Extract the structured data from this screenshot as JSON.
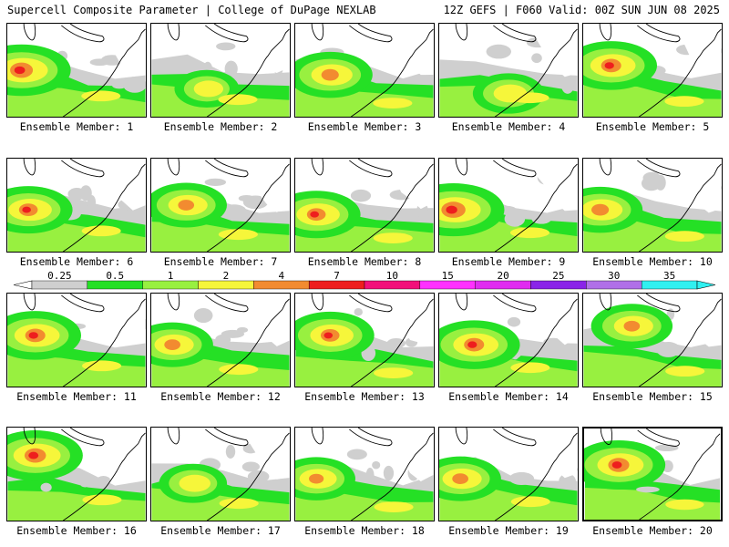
{
  "header": {
    "title_left": "Supercell Composite Parameter | College of DuPage NEXLAB",
    "title_right": "12Z GEFS | F060 Valid: 00Z SUN JUN 08 2025"
  },
  "colors": {
    "land": "#ffffff",
    "coast": "#000000",
    "levels": [
      "#cfcfcf",
      "#25e025",
      "#98f040",
      "#f6f63a",
      "#f28b30",
      "#ee1e1e",
      "#f2107a",
      "#ff30ff",
      "#e02cf0",
      "#8a24e8",
      "#b070e8",
      "#30f0f0"
    ]
  },
  "colorbar": {
    "tick_labels": [
      "0.25",
      "0.5",
      "1",
      "2",
      "4",
      "7",
      "10",
      "15",
      "20",
      "25",
      "30",
      "35"
    ]
  },
  "members": [
    {
      "label": "Ensemble Member: 1",
      "intensity": 0.85,
      "hot_x": 0.1,
      "hot_y": 0.5,
      "selected": false
    },
    {
      "label": "Ensemble Member: 2",
      "intensity": 0.35,
      "hot_x": 0.4,
      "hot_y": 0.7,
      "selected": false
    },
    {
      "label": "Ensemble Member: 3",
      "intensity": 0.65,
      "hot_x": 0.25,
      "hot_y": 0.55,
      "selected": false
    },
    {
      "label": "Ensemble Member: 4",
      "intensity": 0.45,
      "hot_x": 0.5,
      "hot_y": 0.75,
      "selected": false
    },
    {
      "label": "Ensemble Member: 5",
      "intensity": 0.75,
      "hot_x": 0.2,
      "hot_y": 0.45,
      "selected": false
    },
    {
      "label": "Ensemble Member: 6",
      "intensity": 0.7,
      "hot_x": 0.15,
      "hot_y": 0.55,
      "selected": false
    },
    {
      "label": "Ensemble Member: 7",
      "intensity": 0.6,
      "hot_x": 0.25,
      "hot_y": 0.5,
      "selected": false
    },
    {
      "label": "Ensemble Member: 8",
      "intensity": 0.7,
      "hot_x": 0.15,
      "hot_y": 0.6,
      "selected": false
    },
    {
      "label": "Ensemble Member: 9",
      "intensity": 0.9,
      "hot_x": 0.1,
      "hot_y": 0.55,
      "selected": false
    },
    {
      "label": "Ensemble Member: 10",
      "intensity": 0.65,
      "hot_x": 0.12,
      "hot_y": 0.55,
      "selected": false
    },
    {
      "label": "Ensemble Member: 11",
      "intensity": 0.75,
      "hot_x": 0.2,
      "hot_y": 0.45,
      "selected": false
    },
    {
      "label": "Ensemble Member: 12",
      "intensity": 0.6,
      "hot_x": 0.15,
      "hot_y": 0.55,
      "selected": false
    },
    {
      "label": "Ensemble Member: 13",
      "intensity": 0.7,
      "hot_x": 0.25,
      "hot_y": 0.45,
      "selected": false
    },
    {
      "label": "Ensemble Member: 14",
      "intensity": 0.75,
      "hot_x": 0.25,
      "hot_y": 0.55,
      "selected": false
    },
    {
      "label": "Ensemble Member: 15",
      "intensity": 0.6,
      "hot_x": 0.35,
      "hot_y": 0.35,
      "selected": false
    },
    {
      "label": "Ensemble Member: 16",
      "intensity": 0.8,
      "hot_x": 0.2,
      "hot_y": 0.3,
      "selected": false
    },
    {
      "label": "Ensemble Member: 17",
      "intensity": 0.4,
      "hot_x": 0.3,
      "hot_y": 0.6,
      "selected": false
    },
    {
      "label": "Ensemble Member: 18",
      "intensity": 0.55,
      "hot_x": 0.15,
      "hot_y": 0.55,
      "selected": false
    },
    {
      "label": "Ensemble Member: 19",
      "intensity": 0.6,
      "hot_x": 0.15,
      "hot_y": 0.55,
      "selected": false
    },
    {
      "label": "Ensemble Member: 20",
      "intensity": 0.8,
      "hot_x": 0.25,
      "hot_y": 0.4,
      "selected": true
    }
  ]
}
